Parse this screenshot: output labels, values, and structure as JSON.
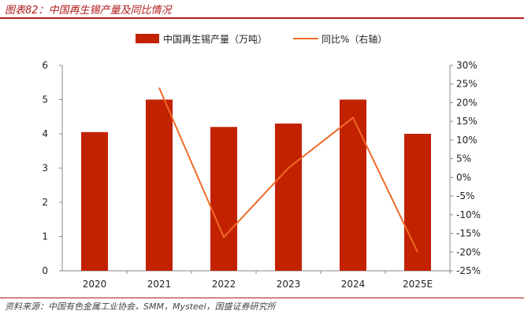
{
  "figure_title": "图表82：中国再生锡产量及同比情况",
  "source": "资料来源：中国有色金属工业协会，SMM，Mysteel，国盛证券研究所",
  "colors": {
    "bar": "#c22200",
    "line": "#f06a28",
    "accent": "#b01a1a"
  },
  "chart_data": {
    "type": "bar",
    "categories": [
      "2020",
      "2021",
      "2022",
      "2023",
      "2024",
      "2025E"
    ],
    "series": [
      {
        "name": "中国再生锡产量（万吨）",
        "type": "bar",
        "axis": "left",
        "values": [
          4.05,
          5.0,
          4.2,
          4.3,
          5.0,
          4.0
        ]
      },
      {
        "name": "同比%（右轴）",
        "type": "line",
        "axis": "right",
        "values": [
          null,
          24.0,
          -16.0,
          2.5,
          16.0,
          -20.0
        ]
      }
    ],
    "y_left": {
      "min": 0,
      "max": 6,
      "ticks": [
        "0",
        "1",
        "2",
        "3",
        "4",
        "5",
        "6"
      ]
    },
    "y_right": {
      "min": -25,
      "max": 30,
      "ticks": [
        "-25%",
        "-20%",
        "-15%",
        "-10%",
        "-5%",
        "0%",
        "5%",
        "10%",
        "15%",
        "20%",
        "25%",
        "30%"
      ]
    },
    "legend_position": "top"
  }
}
